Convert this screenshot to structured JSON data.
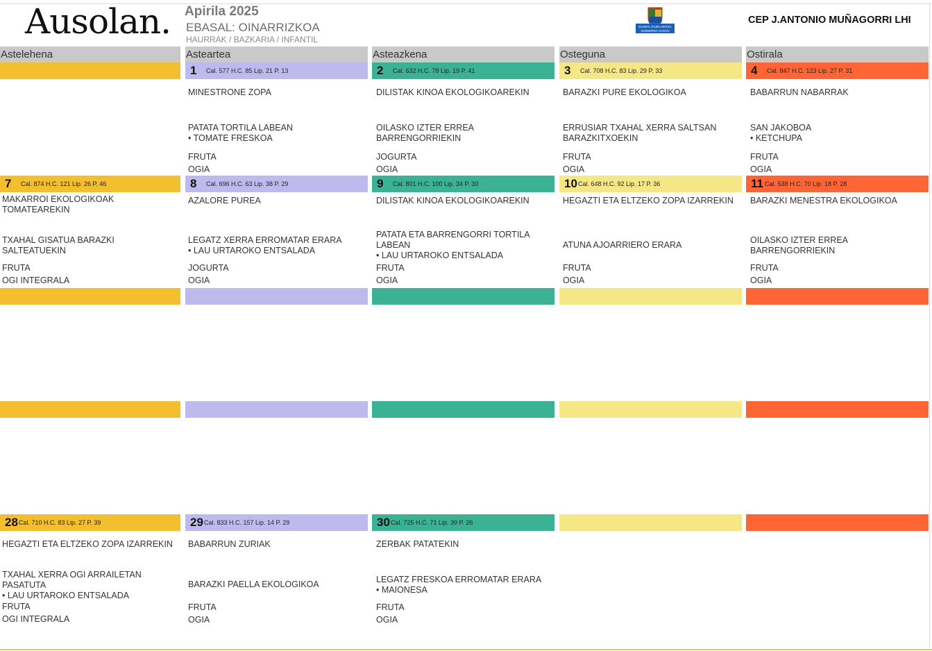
{
  "header": {
    "logo_text": "Ausolan.",
    "month": "Apirila 2025",
    "menu_type": "EBASAL: OINARRIZKOA",
    "audience": "HAURRAK / BAZKARIA / INFANTIL",
    "gov_logo_lines": [
      "EUSKO JAURLARITZA",
      "GOBIERNO VASCO"
    ],
    "school": "CEP J.ANTONIO MUÑAGORRI LHI"
  },
  "day_colors": [
    "#f3bf2f",
    "#bfbaee",
    "#3bb293",
    "#f5e785",
    "#ff6535"
  ],
  "days": [
    "Astelehena",
    "Asteartea",
    "Asteazkena",
    "Osteguna",
    "Ostirala"
  ],
  "weeks": [
    {
      "cells": [
        null,
        {
          "day": "1",
          "nutrition": "Cal. 577 H.C. 85 Lip. 21 P. 13",
          "first": "MINESTRONE ZOPA",
          "second": [
            "PATATA TORTILA LABEAN",
            "• TOMATE FRESKOA"
          ],
          "dessert": "FRUTA",
          "bread": "OGIA"
        },
        {
          "day": "2",
          "nutrition": "Cal. 632 H.C. 78 Lip. 19 P. 41",
          "first": "DILISTAK KINOA EKOLOGIKOAREKIN",
          "second": [
            "OILASKO IZTER ERREA",
            "BARRENGORRIEKIN"
          ],
          "dessert": "JOGURTA",
          "bread": "OGIA"
        },
        {
          "day": "3",
          "nutrition": "Cal. 708 H.C. 83 Lip. 29 P. 33",
          "first": "BARAZKI PURE EKOLOGIKOA",
          "second": [
            "ERRUSIAR TXAHAL XERRA SALTSAN",
            "BARAZKITXOEKIN"
          ],
          "dessert": "FRUTA",
          "bread": "OGIA"
        },
        {
          "day": "4",
          "nutrition": "Cal. 847 H.C. 123 Lip. 27 P. 31",
          "first": "BABARRUN NABARRAK",
          "second": [
            "SAN JAKOBOA",
            "• KETCHUPA"
          ],
          "dessert": "FRUTA",
          "bread": "OGIA"
        }
      ]
    },
    {
      "cells": [
        {
          "day": "7",
          "nutrition": "Cal. 874 H.C. 121 Lip. 26 P. 46",
          "first": [
            "MAKARROI EKOLOGIKOAK",
            "TOMATEAREKIN"
          ],
          "second": [
            "TXAHAL GISATUA BARAZKI",
            "SALTEATUEKIN"
          ],
          "dessert": "FRUTA",
          "bread": "OGI INTEGRALA"
        },
        {
          "day": "8",
          "nutrition": "Cal. 696 H.C. 63 Lip. 38 P. 29",
          "first": "AZALORE PUREA",
          "second": [
            "LEGATZ XERRA ERROMATAR ERARA",
            "• LAU URTAROKO ENTSALADA"
          ],
          "dessert": "JOGURTA",
          "bread": "OGIA"
        },
        {
          "day": "9",
          "nutrition": "Cal. 801 H.C. 100 Lip. 34 P. 30",
          "first": "DILISTAK KINOA EKOLOGIKOAREKIN",
          "second": [
            "PATATA ETA BARRENGORRI TORTILA",
            "LABEAN",
            "• LAU URTAROKO ENTSALADA"
          ],
          "dessert": "FRUTA",
          "bread": "OGIA"
        },
        {
          "day": "10",
          "nutrition": "Cal. 648 H.C. 92 Lip. 17 P. 36",
          "first": "HEGAZTI ETA ELTZEKO ZOPA IZARREKIN",
          "second": [
            "ATUNA AJOARRIERO ERARA"
          ],
          "dessert": "FRUTA",
          "bread": "OGIA"
        },
        {
          "day": "11",
          "nutrition": "Cal. 538 H.C. 70 Lip. 18 P. 28",
          "first": "BARAZKI MENESTRA EKOLOGIKOA",
          "second": [
            "OILASKO IZTER ERREA",
            "BARRENGORRIEKIN"
          ],
          "dessert": "FRUTA",
          "bread": "OGIA"
        }
      ]
    },
    {
      "cells": [
        {
          "day": "28",
          "nutrition": "Cal. 710 H.C. 83 Lip. 27 P. 39",
          "first": "HEGAZTI ETA ELTZEKO ZOPA IZARREKIN",
          "second": [
            "TXAHAL XERRA OGI ARRAILETAN",
            "PASATUTA",
            "• LAU URTAROKO ENTSALADA"
          ],
          "dessert": "FRUTA",
          "bread": "OGI INTEGRALA"
        },
        {
          "day": "29",
          "nutrition": "Cal. 833 H.C. 157 Lip. 14 P. 29",
          "first": "BABARRUN ZURIAK",
          "second": [
            "BARAZKI PAELLA EKOLOGIKOA"
          ],
          "dessert": "FRUTA",
          "bread": "OGIA"
        },
        {
          "day": "30",
          "nutrition": "Cal. 725 H.C. 71 Lip. 39 P. 26",
          "first": "ZERBAK PATATEKIN",
          "second": [
            "LEGATZ FRESKOA ERROMATAR ERARA",
            "• MAIONESA"
          ],
          "dessert": "FRUTA",
          "bread": "OGIA"
        },
        null,
        null
      ]
    }
  ]
}
